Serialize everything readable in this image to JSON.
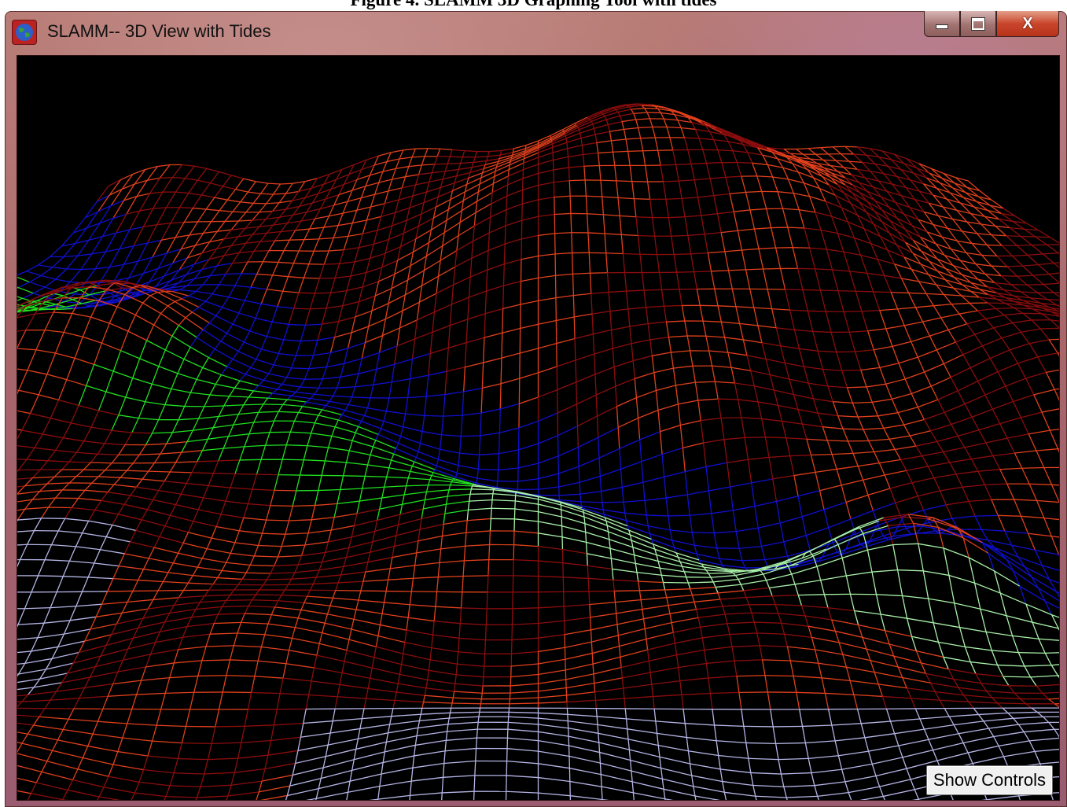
{
  "caption": "Figure 4. SLAMM 3D Graphing Tool with tides",
  "window": {
    "title": "SLAMM-- 3D View with Tides",
    "icon": "globe-icon",
    "controls": {
      "minimize": "minimize-icon",
      "maximize": "maximize-icon",
      "close_glyph": "X"
    }
  },
  "view": {
    "background": "#000000",
    "palette": {
      "upland_dark": "#8b0d0d",
      "upland_light": "#e0401c",
      "open_water": "#1010d0",
      "marsh_bright": "#20e020",
      "marsh_pale": "#a8f0a8",
      "tidal_flat": "#b4b4e6"
    }
  },
  "buttons": {
    "show_controls": "Show Controls"
  }
}
